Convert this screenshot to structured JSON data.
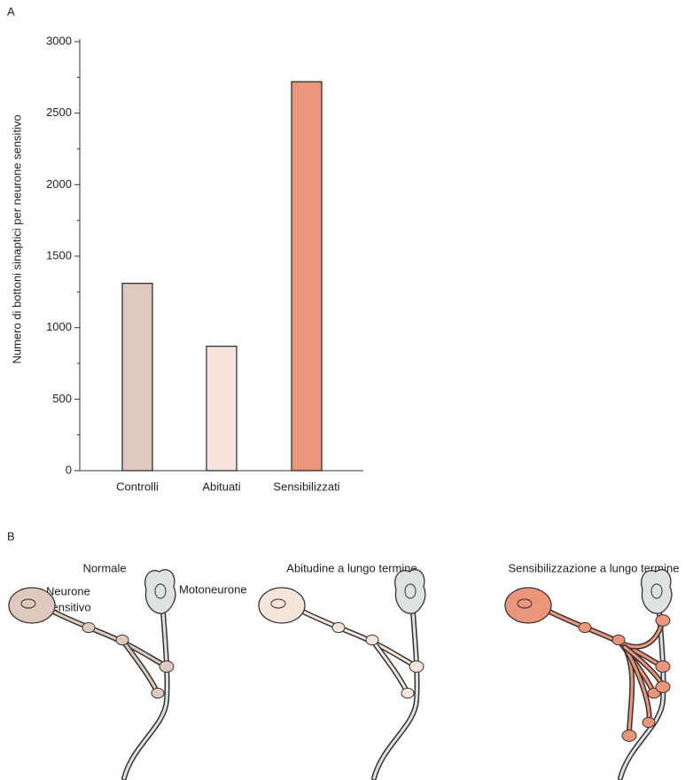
{
  "panel_a": "A",
  "chart_data": {
    "type": "bar",
    "y_label": "Numero di bottoni sinaptici per neurone sensitivo",
    "categories": [
      "Controlli",
      "Abituati",
      "Sensibilizzati"
    ],
    "values": [
      1310,
      870,
      2720
    ],
    "colors": [
      "#dfc9be",
      "#f4e4d9",
      "#eb957a"
    ],
    "ylim": [
      0,
      3000
    ],
    "yticks": [
      0,
      500,
      1000,
      1500,
      2000,
      2500,
      3000
    ],
    "yminorticks": [
      250,
      750,
      1250,
      1750,
      2250,
      2750
    ]
  },
  "panel_b": "B",
  "diagram": {
    "panels": [
      "Normale",
      "Abitudine a lungo termine",
      "Sensibilizzazione a lungo termine"
    ],
    "sensory_label": [
      "Neurone",
      "sensitivo"
    ],
    "motor_label": "Motoneurone"
  }
}
